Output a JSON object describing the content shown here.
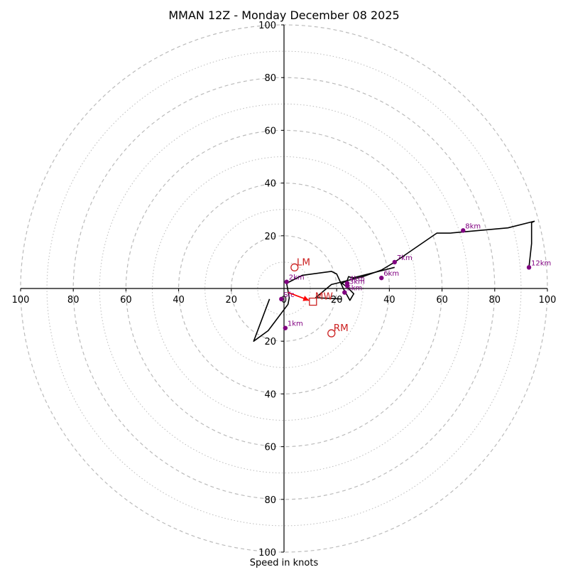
{
  "chart_data": {
    "type": "hodograph",
    "title": "MMAN 12Z - Monday December 08 2025",
    "xlabel": "Speed in knots",
    "max_speed": 100,
    "range_rings": [
      20,
      40,
      60,
      80,
      100
    ],
    "minor_rings": [
      10,
      30,
      50,
      70,
      90
    ],
    "x_tick_labels": [
      "100",
      "80",
      "60",
      "40",
      "20",
      "0",
      "20",
      "40",
      "60",
      "80",
      "100"
    ],
    "y_tick_labels": [
      "100",
      "80",
      "60",
      "40",
      "20",
      "0",
      "20",
      "40",
      "60",
      "80",
      "100"
    ],
    "tick_values": [
      -100,
      -80,
      -60,
      -40,
      -20,
      0,
      20,
      40,
      60,
      80,
      100
    ],
    "hodograph_trace": [
      [
        -5.5,
        -4
      ],
      [
        -11.5,
        -20
      ],
      [
        -6,
        -16
      ],
      [
        1.5,
        -6
      ],
      [
        2,
        -3.5
      ],
      [
        1,
        2
      ],
      [
        3,
        3
      ],
      [
        7,
        5
      ],
      [
        18,
        6.5
      ],
      [
        20,
        5.5
      ],
      [
        22.5,
        0
      ],
      [
        25,
        -4.5
      ],
      [
        26.5,
        -2
      ],
      [
        24,
        0.5
      ],
      [
        22,
        2
      ],
      [
        24,
        3
      ],
      [
        30,
        4.5
      ],
      [
        37,
        7
      ],
      [
        42,
        10
      ],
      [
        58,
        21
      ],
      [
        63,
        21
      ],
      [
        85,
        23
      ],
      [
        95,
        25.5
      ],
      [
        94,
        25
      ],
      [
        94,
        17
      ],
      [
        93,
        8
      ]
    ],
    "inflow_trace": [
      [
        22,
        -4
      ],
      [
        12,
        -3.5
      ],
      [
        18,
        1.5
      ],
      [
        20,
        2
      ],
      [
        24,
        3
      ],
      [
        24.5,
        4.5
      ],
      [
        26,
        4
      ],
      [
        42,
        8
      ]
    ],
    "height_markers": [
      {
        "label": "Sfc",
        "u": -1,
        "v": -4
      },
      {
        "label": "1km",
        "u": 0.5,
        "v": -15
      },
      {
        "label": "2km",
        "u": 1,
        "v": 2.5
      },
      {
        "label": "3km",
        "u": 24,
        "v": 1
      },
      {
        "label": "4km",
        "u": 24,
        "v": 2
      },
      {
        "label": "5km",
        "u": 23,
        "v": -1.5
      },
      {
        "label": "6km",
        "u": 37,
        "v": 4
      },
      {
        "label": "7km",
        "u": 42,
        "v": 10
      },
      {
        "label": "8km",
        "u": 68,
        "v": 22
      },
      {
        "label": "12km",
        "u": 93,
        "v": 8
      }
    ],
    "storm_motions": [
      {
        "label": "LM",
        "u": 4,
        "v": 8,
        "marker": "circle"
      },
      {
        "label": "RM",
        "u": 18,
        "v": -17,
        "marker": "circle"
      },
      {
        "label": "MW",
        "u": 11,
        "v": -5,
        "marker": "square"
      }
    ],
    "mean_wind_arrow": {
      "from": [
        1.5,
        -1.5
      ],
      "to": [
        9.5,
        -4.5
      ]
    },
    "colors": {
      "trace": "#000000",
      "markers": "#800080",
      "storm_motion": "#cc2222",
      "arrow": "#ff0000",
      "rings": "#bbbbbb"
    }
  }
}
